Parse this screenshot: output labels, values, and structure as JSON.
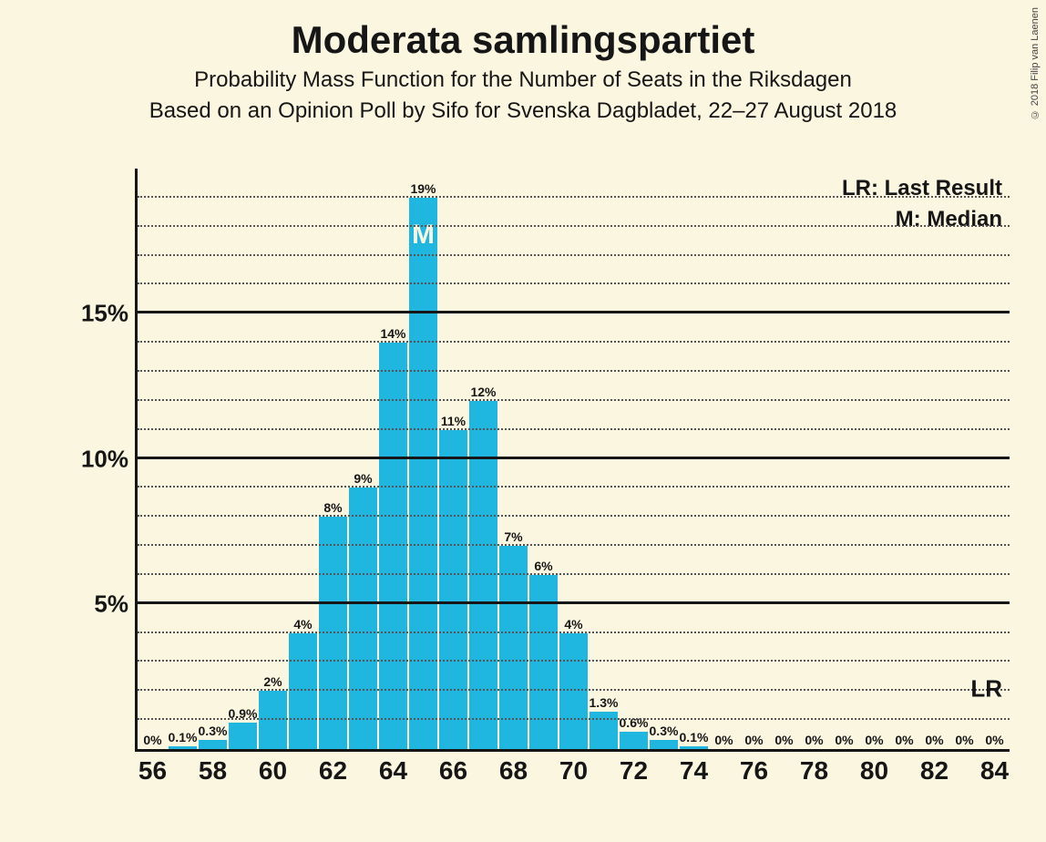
{
  "title": "Moderata samlingspartiet",
  "subtitle1": "Probability Mass Function for the Number of Seats in the Riksdagen",
  "subtitle2": "Based on an Opinion Poll by Sifo for Svenska Dagbladet, 22–27 August 2018",
  "copyright": "© 2018 Filip van Laenen",
  "legend": {
    "lr": "LR: Last Result",
    "m": "M: Median"
  },
  "colors": {
    "background": "#fbf6e0",
    "text": "#161616",
    "bar": "#1fb6e0",
    "median_text": "#fbf6e0",
    "grid_major": "#161616",
    "grid_minor": "#555555"
  },
  "chart": {
    "type": "bar",
    "x_start": 56,
    "x_end": 84,
    "x_tick_step": 2,
    "ylim": [
      0,
      20
    ],
    "y_major_step": 5,
    "y_minor_step": 1,
    "bar_width_ratio": 0.92,
    "median_seat": 65,
    "median_glyph": "M",
    "lr_value": 2.07,
    "lr_label": "LR",
    "bars": [
      {
        "x": 56,
        "v": 0,
        "label": "0%"
      },
      {
        "x": 57,
        "v": 0.1,
        "label": "0.1%"
      },
      {
        "x": 58,
        "v": 0.3,
        "label": "0.3%"
      },
      {
        "x": 59,
        "v": 0.9,
        "label": "0.9%"
      },
      {
        "x": 60,
        "v": 2,
        "label": "2%"
      },
      {
        "x": 61,
        "v": 4,
        "label": "4%"
      },
      {
        "x": 62,
        "v": 8,
        "label": "8%"
      },
      {
        "x": 63,
        "v": 9,
        "label": "9%"
      },
      {
        "x": 64,
        "v": 14,
        "label": "14%"
      },
      {
        "x": 65,
        "v": 19,
        "label": "19%"
      },
      {
        "x": 66,
        "v": 11,
        "label": "11%"
      },
      {
        "x": 67,
        "v": 12,
        "label": "12%"
      },
      {
        "x": 68,
        "v": 7,
        "label": "7%"
      },
      {
        "x": 69,
        "v": 6,
        "label": "6%"
      },
      {
        "x": 70,
        "v": 4,
        "label": "4%"
      },
      {
        "x": 71,
        "v": 1.3,
        "label": "1.3%"
      },
      {
        "x": 72,
        "v": 0.6,
        "label": "0.6%"
      },
      {
        "x": 73,
        "v": 0.3,
        "label": "0.3%"
      },
      {
        "x": 74,
        "v": 0.1,
        "label": "0.1%"
      },
      {
        "x": 75,
        "v": 0,
        "label": "0%"
      },
      {
        "x": 76,
        "v": 0,
        "label": "0%"
      },
      {
        "x": 77,
        "v": 0,
        "label": "0%"
      },
      {
        "x": 78,
        "v": 0,
        "label": "0%"
      },
      {
        "x": 79,
        "v": 0,
        "label": "0%"
      },
      {
        "x": 80,
        "v": 0,
        "label": "0%"
      },
      {
        "x": 81,
        "v": 0,
        "label": "0%"
      },
      {
        "x": 82,
        "v": 0,
        "label": "0%"
      },
      {
        "x": 83,
        "v": 0,
        "label": "0%"
      },
      {
        "x": 84,
        "v": 0,
        "label": "0%"
      }
    ],
    "title_fontsize": 42,
    "subtitle_fontsize": 24,
    "ytick_fontsize": 26,
    "xtick_fontsize": 28,
    "barlabel_fontsize": 14,
    "legend_fontsize": 24
  }
}
